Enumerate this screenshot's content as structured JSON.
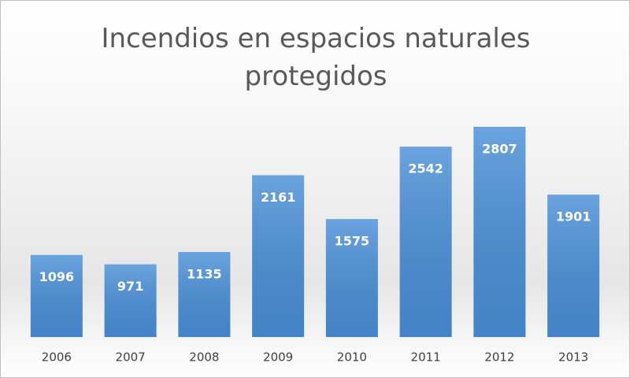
{
  "chart_data": {
    "type": "bar",
    "title": "Incendios en espacios naturales protegidos",
    "categories": [
      "2006",
      "2007",
      "2008",
      "2009",
      "2010",
      "2011",
      "2012",
      "2013"
    ],
    "values": [
      1096,
      971,
      1135,
      2161,
      1575,
      2542,
      2807,
      1901
    ],
    "color": "#4a8fd8"
  }
}
